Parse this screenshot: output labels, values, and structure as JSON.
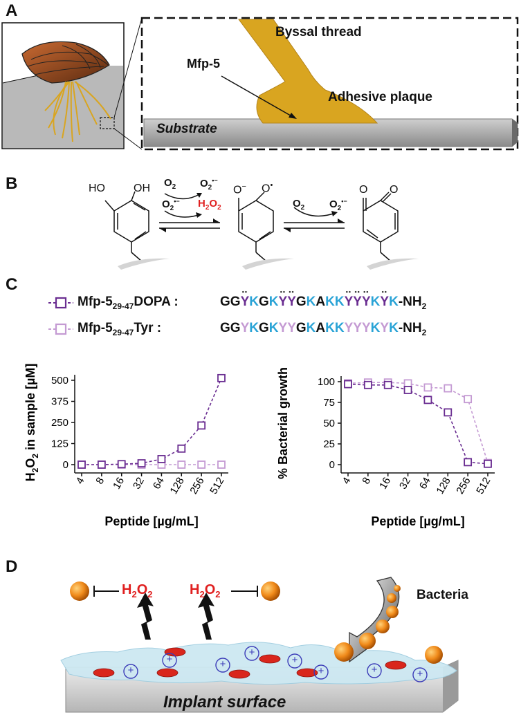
{
  "panels": {
    "a": "A",
    "b": "B",
    "c": "C",
    "d": "D"
  },
  "panel_a": {
    "byssal_thread": "Byssal thread",
    "mfp5": "Mfp-5",
    "adhesive_plaque": "Adhesive plaque",
    "substrate": "Substrate"
  },
  "panel_b": {
    "ho_left": "HO",
    "oh_right": "OH",
    "o2": "O",
    "o2_sub": "2",
    "superoxide": "O",
    "superoxide_sub": "2",
    "superoxide_sup": "•−",
    "h2o2": "H",
    "h2o2_sub": "2",
    "h2o2_o": "O",
    "h2o2_sub2": "2",
    "o_minus": "O",
    "o_minus_sup": "−",
    "o_dot": "O",
    "o_dot_sup": "•",
    "o_keto_l": "O",
    "o_keto_r": "O"
  },
  "panel_c": {
    "dopa_name": "Mfp-5",
    "dopa_sub": "29-47",
    "dopa_suffix": "DOPA :",
    "tyr_name": "Mfp-5",
    "tyr_sub": "29-47",
    "tyr_suffix": "Tyr :",
    "nh2": "-NH",
    "nh2_sub": "2",
    "sequence": [
      "G",
      "G",
      "Y",
      "K",
      "G",
      "K",
      "Y",
      "Y",
      "G",
      "K",
      "A",
      "K",
      "K",
      "Y",
      "Y",
      "Y",
      "K",
      "Y",
      "K"
    ],
    "dopa_modified_positions": [
      2,
      6,
      7,
      13,
      14,
      15,
      17
    ],
    "colors": {
      "dopa": "#6a2d91",
      "tyr": "#c49ad3",
      "lys": "#29a3d6",
      "black": "#111111"
    }
  },
  "chart_data": [
    {
      "type": "line",
      "title": "",
      "xlabel": "Peptide [µg/mL]",
      "ylabel": "H2O2 in sample [µM]",
      "ylabel_parts": {
        "a": "H",
        "a_sub": "2",
        "b": "O",
        "b_sub": "2",
        "c": " in sample [µM]"
      },
      "categories": [
        "4",
        "8",
        "16",
        "32",
        "64",
        "128",
        "256",
        "512"
      ],
      "yticks": [
        "0",
        "125",
        "250",
        "375",
        "500"
      ],
      "ylim": [
        0,
        500
      ],
      "series": [
        {
          "name": "Mfp-5 29-47 DOPA",
          "color": "#6a2d91",
          "values": [
            0,
            0,
            3,
            8,
            33,
            95,
            232,
            513
          ]
        },
        {
          "name": "Mfp-5 29-47 Tyr",
          "color": "#c49ad3",
          "values": [
            0,
            0,
            0,
            0,
            0,
            0,
            0,
            0
          ]
        }
      ]
    },
    {
      "type": "line",
      "title": "",
      "xlabel": "Peptide [µg/mL]",
      "ylabel": "% Bacterial growth",
      "categories": [
        "4",
        "8",
        "16",
        "32",
        "64",
        "128",
        "256",
        "512"
      ],
      "yticks": [
        "0",
        "25",
        "50",
        "75",
        "100"
      ],
      "ylim": [
        0,
        100
      ],
      "series": [
        {
          "name": "Mfp-5 29-47 DOPA",
          "color": "#6a2d91",
          "values": [
            97,
            96,
            96,
            90,
            78,
            63,
            3,
            1
          ]
        },
        {
          "name": "Mfp-5 29-47 Tyr",
          "color": "#c49ad3",
          "values": [
            98,
            99,
            99,
            98,
            93,
            92,
            79,
            2
          ]
        }
      ]
    }
  ],
  "panel_d": {
    "h2o2_a": "H",
    "h2o2_sub_a": "2",
    "h2o2_b": "O",
    "h2o2_sub_b": "2",
    "bacteria": "Bacteria",
    "implant_surface": "Implant surface",
    "plus": "+"
  }
}
